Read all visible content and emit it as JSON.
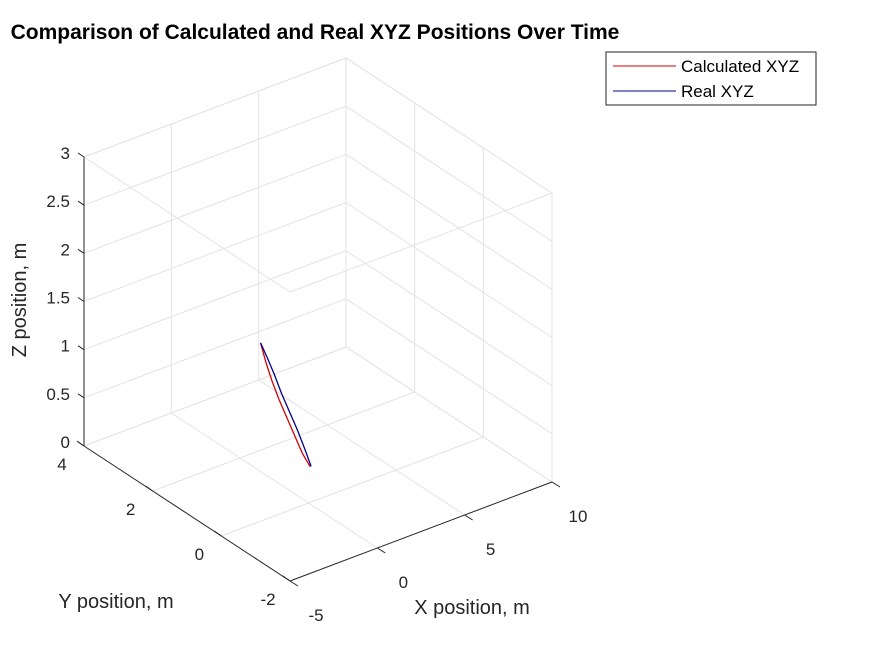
{
  "chart_data": {
    "type": "line",
    "projection": "3d",
    "title": "Comparison of Calculated and Real XYZ Positions Over Time",
    "xlabel": "X position, m",
    "ylabel": "Y position, m",
    "zlabel": "Z position, m",
    "xlim": [
      -5,
      10
    ],
    "ylim": [
      -2,
      4
    ],
    "zlim": [
      0,
      3
    ],
    "xticks": [
      "-5",
      "0",
      "5",
      "10"
    ],
    "yticks": [
      "-2",
      "0",
      "2",
      "4"
    ],
    "zticks": [
      "0",
      "0.5",
      "1",
      "1.5",
      "2",
      "2.5",
      "3"
    ],
    "grid": true,
    "box": true,
    "legend_position": "top-right",
    "series": [
      {
        "name": "Calculated XYZ",
        "color": "#d40000",
        "x": [
          -2.75,
          -2.55,
          -2.3,
          -2.0,
          -1.65,
          -1.3,
          -0.95,
          -0.6
        ],
        "y": [
          0.0,
          -0.05,
          -0.1,
          -0.15,
          -0.2,
          -0.25,
          -0.3,
          -0.35
        ],
        "z": [
          1.85,
          1.65,
          1.45,
          1.25,
          1.05,
          0.85,
          0.65,
          0.5
        ]
      },
      {
        "name": "Real XYZ",
        "color": "#00008b",
        "x": [
          -2.75,
          -2.45,
          -2.15,
          -1.85,
          -1.5,
          -1.15,
          -0.8,
          -0.55
        ],
        "y": [
          0.0,
          -0.05,
          -0.1,
          -0.15,
          -0.2,
          -0.25,
          -0.3,
          -0.35
        ],
        "z": [
          1.85,
          1.68,
          1.5,
          1.3,
          1.1,
          0.9,
          0.68,
          0.5
        ]
      }
    ]
  }
}
